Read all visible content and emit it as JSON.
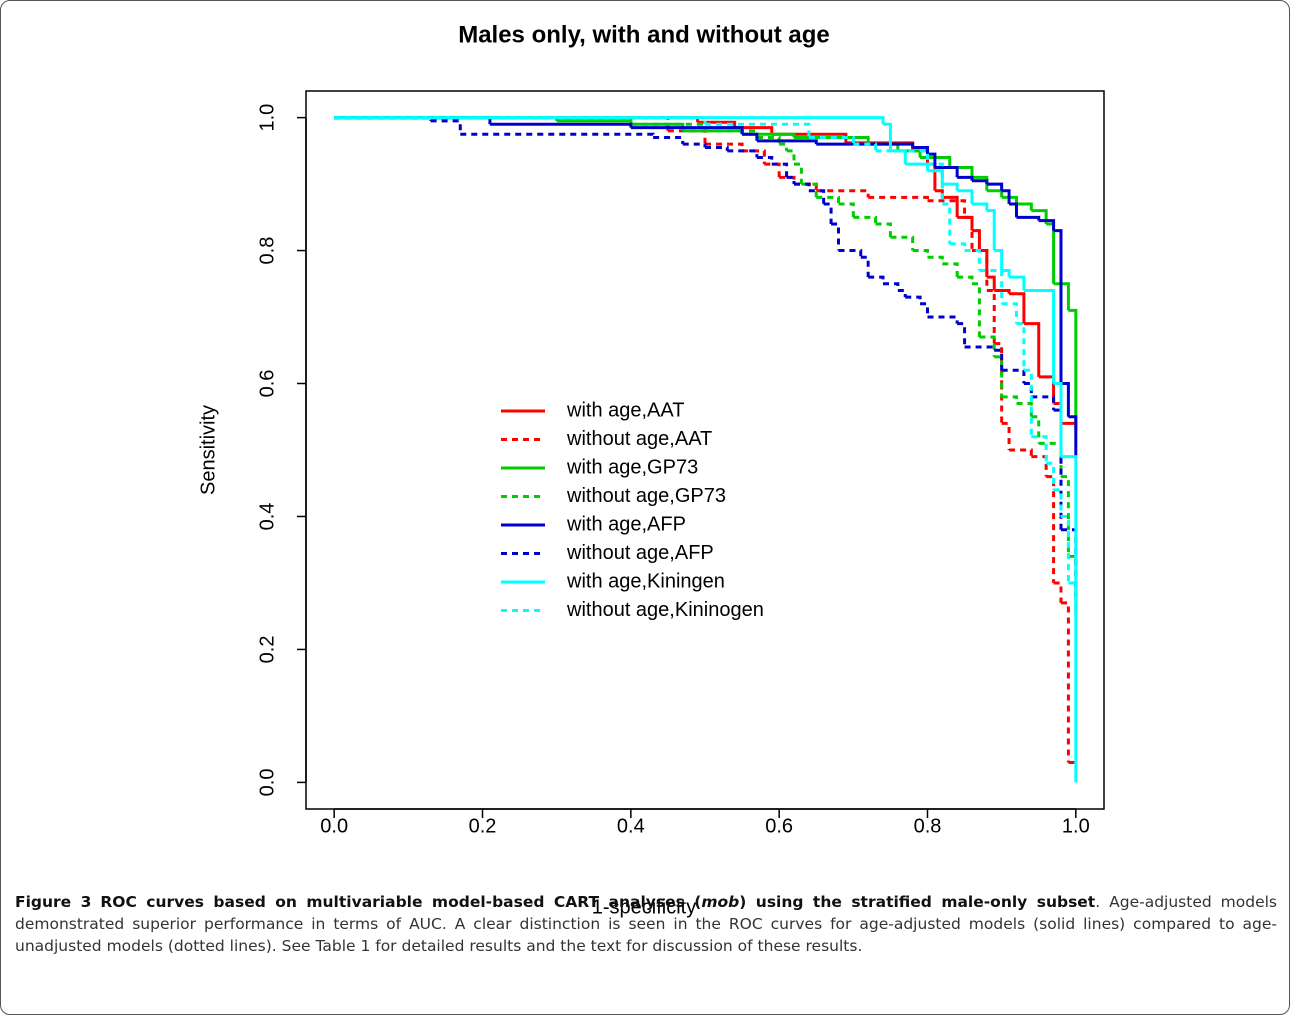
{
  "chart_data": {
    "type": "step-line",
    "title": "Males only, with and without age",
    "x_label": "1-specificity",
    "y_label": "Sensitivity",
    "xlim": [
      -0.038,
      1.038
    ],
    "ylim": [
      -0.04,
      1.04
    ],
    "xticks": [
      {
        "value": 0,
        "label": "0.0"
      },
      0.2,
      0.4,
      0.6,
      0.8,
      {
        "value": 1,
        "label": "1.0"
      }
    ],
    "yticks": [
      {
        "value": 0,
        "label": "0.0"
      },
      0.2,
      0.4,
      0.6,
      0.8,
      {
        "value": 1,
        "label": "1.0"
      }
    ],
    "legend": "center",
    "series": [
      {
        "name": "with age,AAT",
        "color": "#ff0000",
        "dashed": false,
        "x": [
          0,
          0.49,
          0.54,
          0.59,
          0.69,
          0.78,
          0.8,
          0.81,
          0.82,
          0.84,
          0.86,
          0.87,
          0.88,
          0.89,
          0.91,
          0.93,
          0.95,
          0.97,
          0.98,
          1.0
        ],
        "values": [
          1,
          0.993,
          0.985,
          0.975,
          0.962,
          0.95,
          0.93,
          0.89,
          0.88,
          0.85,
          0.83,
          0.8,
          0.76,
          0.74,
          0.735,
          0.69,
          0.61,
          0.57,
          0.54,
          0.53
        ]
      },
      {
        "name": "without age,AAT",
        "color": "#ff0000",
        "dashed": true,
        "x": [
          0,
          0.45,
          0.5,
          0.55,
          0.58,
          0.6,
          0.62,
          0.65,
          0.72,
          0.8,
          0.85,
          0.86,
          0.88,
          0.89,
          0.9,
          0.9,
          0.91,
          0.94,
          0.96,
          0.97,
          0.98,
          0.99,
          1.0
        ],
        "values": [
          1,
          0.98,
          0.96,
          0.95,
          0.93,
          0.91,
          0.9,
          0.89,
          0.88,
          0.875,
          0.85,
          0.8,
          0.74,
          0.66,
          0.6,
          0.54,
          0.5,
          0.49,
          0.46,
          0.3,
          0.27,
          0.03,
          0.03
        ]
      },
      {
        "name": "with age,GP73",
        "color": "#00cd00",
        "dashed": false,
        "x": [
          0,
          0.3,
          0.4,
          0.47,
          0.55,
          0.62,
          0.72,
          0.76,
          0.79,
          0.83,
          0.86,
          0.88,
          0.9,
          0.92,
          0.94,
          0.96,
          0.97,
          0.99,
          1.0
        ],
        "values": [
          1,
          0.995,
          0.99,
          0.98,
          0.975,
          0.97,
          0.96,
          0.95,
          0.94,
          0.925,
          0.91,
          0.89,
          0.88,
          0.87,
          0.86,
          0.84,
          0.75,
          0.71,
          0.54
        ]
      },
      {
        "name": "without age,GP73",
        "color": "#00cd00",
        "dashed": true,
        "x": [
          0,
          0.4,
          0.5,
          0.57,
          0.6,
          0.61,
          0.62,
          0.63,
          0.65,
          0.68,
          0.7,
          0.73,
          0.75,
          0.78,
          0.8,
          0.82,
          0.84,
          0.86,
          0.87,
          0.89,
          0.9,
          0.92,
          0.94,
          0.95,
          0.98,
          0.99,
          1.0
        ],
        "values": [
          1,
          0.99,
          0.98,
          0.97,
          0.96,
          0.95,
          0.93,
          0.9,
          0.88,
          0.87,
          0.85,
          0.84,
          0.82,
          0.8,
          0.79,
          0.78,
          0.76,
          0.75,
          0.67,
          0.64,
          0.58,
          0.57,
          0.55,
          0.51,
          0.46,
          0.34,
          0.26
        ]
      },
      {
        "name": "with age,AFP",
        "color": "#0000cd",
        "dashed": false,
        "x": [
          0,
          0.21,
          0.4,
          0.55,
          0.57,
          0.65,
          0.78,
          0.8,
          0.81,
          0.84,
          0.86,
          0.88,
          0.9,
          0.91,
          0.92,
          0.95,
          0.97,
          0.98,
          0.99,
          1.0
        ],
        "values": [
          1,
          0.99,
          0.985,
          0.975,
          0.965,
          0.96,
          0.955,
          0.945,
          0.925,
          0.91,
          0.905,
          0.9,
          0.89,
          0.87,
          0.85,
          0.845,
          0.83,
          0.6,
          0.55,
          0.49
        ]
      },
      {
        "name": "without age,AFP",
        "color": "#0000cd",
        "dashed": true,
        "x": [
          0,
          0.13,
          0.17,
          0.43,
          0.47,
          0.5,
          0.53,
          0.57,
          0.59,
          0.61,
          0.62,
          0.64,
          0.66,
          0.67,
          0.68,
          0.71,
          0.72,
          0.74,
          0.76,
          0.77,
          0.79,
          0.8,
          0.84,
          0.85,
          0.89,
          0.9,
          0.93,
          0.94,
          0.97,
          0.98,
          1.0
        ],
        "values": [
          1,
          0.995,
          0.975,
          0.97,
          0.96,
          0.955,
          0.95,
          0.94,
          0.93,
          0.91,
          0.9,
          0.89,
          0.87,
          0.84,
          0.8,
          0.79,
          0.76,
          0.75,
          0.74,
          0.73,
          0.72,
          0.7,
          0.69,
          0.655,
          0.65,
          0.62,
          0.6,
          0.58,
          0.56,
          0.38,
          0.28
        ]
      },
      {
        "name": "with age,Kiningen",
        "color": "#00ffff",
        "dashed": false,
        "x": [
          0,
          0.74,
          0.75,
          0.77,
          0.8,
          0.82,
          0.84,
          0.86,
          0.88,
          0.89,
          0.9,
          0.91,
          0.93,
          0.96,
          0.97,
          0.98,
          1.0
        ],
        "values": [
          1,
          0.99,
          0.95,
          0.93,
          0.92,
          0.9,
          0.89,
          0.87,
          0.86,
          0.8,
          0.77,
          0.76,
          0.74,
          0.74,
          0.6,
          0.49,
          0.0
        ]
      },
      {
        "name": "without age,Kininogen",
        "color": "#00ffff",
        "dashed": true,
        "x": [
          0,
          0.5,
          0.64,
          0.7,
          0.73,
          0.8,
          0.82,
          0.83,
          0.85,
          0.87,
          0.9,
          0.92,
          0.93,
          0.94,
          0.96,
          0.97,
          0.98,
          0.99,
          1.0
        ],
        "values": [
          1,
          0.99,
          0.97,
          0.96,
          0.95,
          0.93,
          0.87,
          0.81,
          0.8,
          0.77,
          0.72,
          0.69,
          0.62,
          0.52,
          0.48,
          0.44,
          0.4,
          0.3,
          0.25
        ]
      }
    ]
  },
  "caption": {
    "label": "Figure 3",
    "title_start": "ROC curves based on multivariable model-based CART analyses (",
    "title_italic": "mob",
    "title_end": ") using the stratified male-only subset",
    "body": ". Age-adjusted models demonstrated superior performance in terms of AUC. A clear distinction is seen in the ROC curves for age-adjusted models (solid lines) compared to age-unadjusted models (dotted lines). See Table 1 for detailed results and the text for discussion of these results."
  }
}
